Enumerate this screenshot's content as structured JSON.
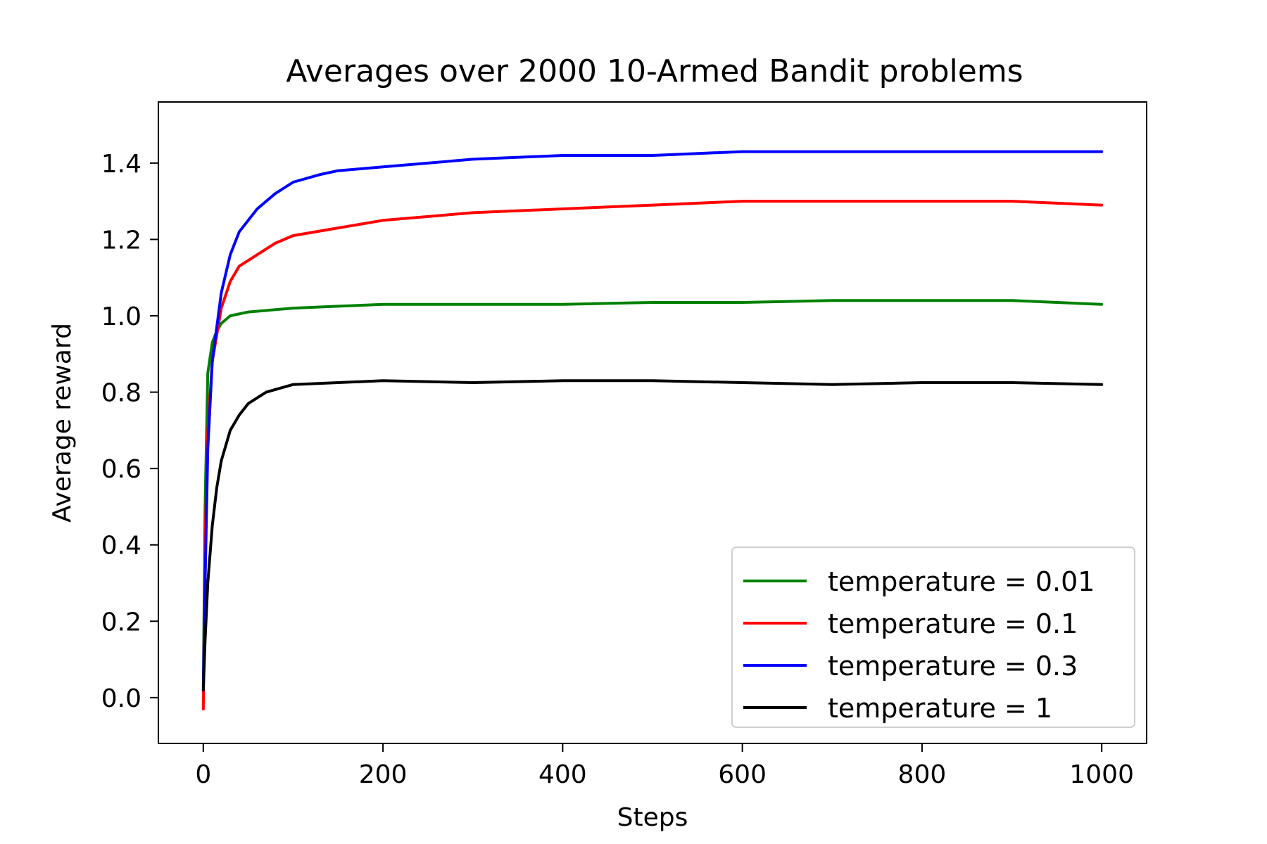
{
  "chart_data": {
    "type": "line",
    "title": "Averages over 2000 10-Armed Bandit problems",
    "xlabel": "Steps",
    "ylabel": "Average reward",
    "xlim": [
      -50,
      1050
    ],
    "ylim": [
      -0.12,
      1.56
    ],
    "xticks": [
      0,
      200,
      400,
      600,
      800,
      1000
    ],
    "yticks": [
      0.0,
      0.2,
      0.4,
      0.6,
      0.8,
      1.0,
      1.2,
      1.4
    ],
    "xtick_labels": [
      "0",
      "200",
      "400",
      "600",
      "800",
      "1000"
    ],
    "ytick_labels": [
      "0.0",
      "0.2",
      "0.4",
      "0.6",
      "0.8",
      "1.0",
      "1.2",
      "1.4"
    ],
    "grid": false,
    "legend_position": "lower-right",
    "series": [
      {
        "name": "temperature = 0.01",
        "color": "#008000",
        "x": [
          0,
          2,
          5,
          10,
          15,
          20,
          30,
          50,
          100,
          150,
          200,
          300,
          400,
          500,
          600,
          700,
          800,
          900,
          1000
        ],
        "values": [
          0.03,
          0.5,
          0.85,
          0.93,
          0.96,
          0.98,
          1.0,
          1.01,
          1.02,
          1.025,
          1.03,
          1.03,
          1.03,
          1.035,
          1.035,
          1.04,
          1.04,
          1.04,
          1.03
        ]
      },
      {
        "name": "temperature = 0.1",
        "color": "#ff0000",
        "x": [
          0,
          2,
          5,
          10,
          20,
          30,
          40,
          60,
          80,
          100,
          150,
          200,
          300,
          400,
          500,
          600,
          700,
          800,
          900,
          1000
        ],
        "values": [
          -0.03,
          0.4,
          0.7,
          0.88,
          1.02,
          1.09,
          1.13,
          1.16,
          1.19,
          1.21,
          1.23,
          1.25,
          1.27,
          1.28,
          1.29,
          1.3,
          1.3,
          1.3,
          1.3,
          1.29
        ]
      },
      {
        "name": "temperature = 0.3",
        "color": "#0000ff",
        "x": [
          0,
          2,
          5,
          10,
          20,
          30,
          40,
          60,
          80,
          100,
          130,
          150,
          200,
          300,
          400,
          500,
          600,
          700,
          800,
          900,
          1000
        ],
        "values": [
          0.02,
          0.3,
          0.65,
          0.88,
          1.06,
          1.16,
          1.22,
          1.28,
          1.32,
          1.35,
          1.37,
          1.38,
          1.39,
          1.41,
          1.42,
          1.42,
          1.43,
          1.43,
          1.43,
          1.43,
          1.43
        ]
      },
      {
        "name": "temperature = 1",
        "color": "#000000",
        "x": [
          0,
          2,
          5,
          10,
          15,
          20,
          30,
          40,
          50,
          70,
          100,
          150,
          200,
          300,
          400,
          500,
          600,
          700,
          800,
          900,
          1000
        ],
        "values": [
          0.02,
          0.15,
          0.3,
          0.45,
          0.55,
          0.62,
          0.7,
          0.74,
          0.77,
          0.8,
          0.82,
          0.825,
          0.83,
          0.825,
          0.83,
          0.83,
          0.825,
          0.82,
          0.825,
          0.825,
          0.82
        ]
      }
    ]
  }
}
